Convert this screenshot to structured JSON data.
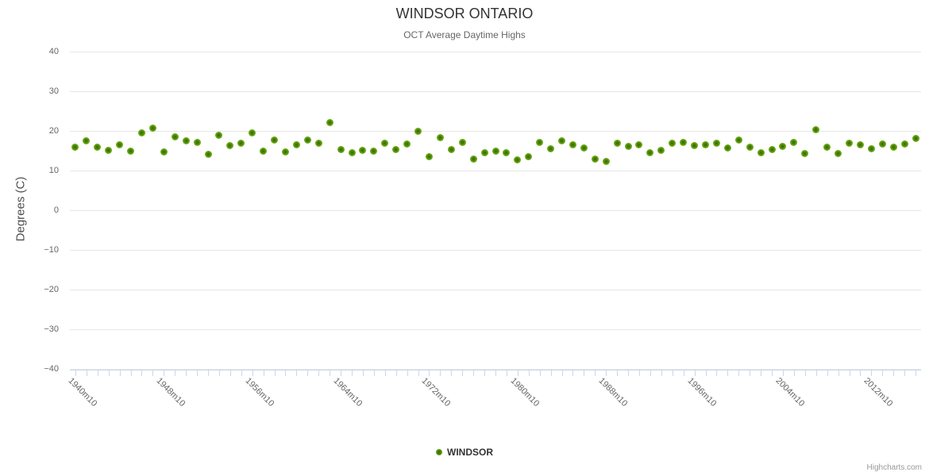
{
  "title": "WINDSOR ONTARIO",
  "subtitle": "OCT Average Daytime Highs",
  "credit": "Highcharts.com",
  "legend": {
    "label": "WINDSOR"
  },
  "colors": {
    "point_green": "#7ab41e",
    "point_core": "#2f6b00",
    "grid": "#e6e6e6",
    "axis": "#ccd6eb",
    "title_text": "#333333",
    "subtitle_text": "#666666",
    "axis_label_text": "#666666",
    "credit_text": "#999999"
  },
  "chart_data": {
    "type": "scatter",
    "title": "WINDSOR ONTARIO",
    "subtitle": "OCT Average Daytime Highs",
    "xlabel": "",
    "ylabel": "Degrees (C)",
    "ylim": [
      -40,
      40
    ],
    "yticks": [
      40,
      30,
      20,
      10,
      0,
      -10,
      -20,
      -30,
      -40
    ],
    "ytick_labels": [
      "40",
      "30",
      "20",
      "10",
      "0",
      "−10",
      "−20",
      "−30",
      "−40"
    ],
    "grid": "horizontal",
    "legend_position": "bottom-center",
    "x_tick_label_step": 8,
    "categories": [
      "1940m10",
      "1941m10",
      "1942m10",
      "1943m10",
      "1944m10",
      "1945m10",
      "1946m10",
      "1947m10",
      "1948m10",
      "1949m10",
      "1950m10",
      "1951m10",
      "1952m10",
      "1953m10",
      "1954m10",
      "1955m10",
      "1956m10",
      "1957m10",
      "1958m10",
      "1959m10",
      "1960m10",
      "1961m10",
      "1962m10",
      "1963m10",
      "1964m10",
      "1965m10",
      "1966m10",
      "1967m10",
      "1968m10",
      "1969m10",
      "1970m10",
      "1971m10",
      "1972m10",
      "1973m10",
      "1974m10",
      "1975m10",
      "1976m10",
      "1977m10",
      "1978m10",
      "1979m10",
      "1980m10",
      "1981m10",
      "1982m10",
      "1983m10",
      "1984m10",
      "1985m10",
      "1986m10",
      "1987m10",
      "1988m10",
      "1989m10",
      "1990m10",
      "1991m10",
      "1992m10",
      "1993m10",
      "1994m10",
      "1995m10",
      "1996m10",
      "1997m10",
      "1998m10",
      "1999m10",
      "2000m10",
      "2001m10",
      "2002m10",
      "2003m10",
      "2004m10",
      "2005m10",
      "2006m10",
      "2007m10",
      "2008m10",
      "2009m10",
      "2010m10",
      "2011m10",
      "2012m10",
      "2013m10",
      "2014m10",
      "2015m10",
      "2016m10"
    ],
    "series": [
      {
        "name": "WINDSOR",
        "color": "#7ab41e",
        "values": [
          15.9,
          17.6,
          15.9,
          15.1,
          16.6,
          14.9,
          19.6,
          20.8,
          14.8,
          18.5,
          17.5,
          17.2,
          14.1,
          19.0,
          16.3,
          17.0,
          19.5,
          15.0,
          17.7,
          14.7,
          16.5,
          17.7,
          16.9,
          22.2,
          15.3,
          14.5,
          15.2,
          15.0,
          16.9,
          15.3,
          16.8,
          20.0,
          13.6,
          18.4,
          15.4,
          17.1,
          12.9,
          14.5,
          14.9,
          14.5,
          12.7,
          13.5,
          17.2,
          15.5,
          17.5,
          16.5,
          15.7,
          12.9,
          12.4,
          17.0,
          16.2,
          16.5,
          14.5,
          15.2,
          16.9,
          17.2,
          16.3,
          16.6,
          17.0,
          15.8,
          17.7,
          15.9,
          14.5,
          15.3,
          16.1,
          17.1,
          14.3,
          20.3,
          16.0,
          14.3,
          17.0,
          16.5,
          15.6,
          16.7,
          15.9,
          16.8,
          18.2
        ]
      }
    ]
  }
}
